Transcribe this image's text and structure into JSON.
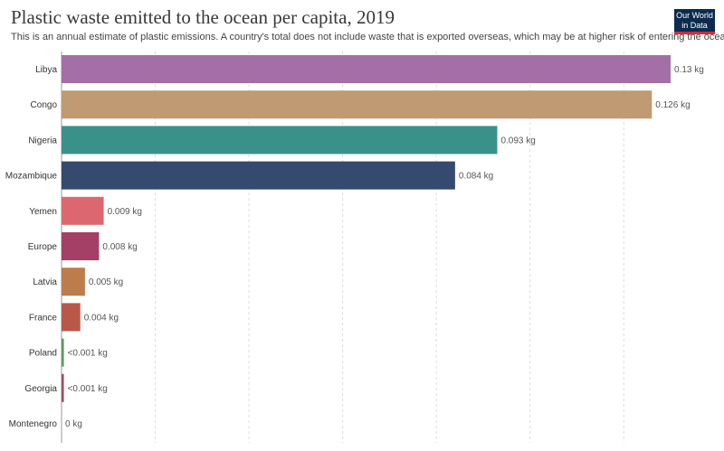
{
  "header": {
    "title": "Plastic waste emitted to the ocean per capita, 2019",
    "subtitle": "This is an annual estimate of plastic emissions. A country's total does not include waste that is exported overseas, which may be at higher risk of entering the ocean.",
    "logo_line1": "Our World",
    "logo_line2": "in Data"
  },
  "colors": {
    "logo_bg": "#0c2b4f",
    "logo_accent": "#d42b3a",
    "grid": "#dddddd"
  },
  "chart_data": {
    "type": "bar",
    "orientation": "horizontal",
    "title": "Plastic waste emitted to the ocean per capita, 2019",
    "unit": "kg",
    "xlim": [
      0,
      0.13
    ],
    "grid": true,
    "categories": [
      "Libya",
      "Congo",
      "Nigeria",
      "Mozambique",
      "Yemen",
      "Europe",
      "Latvia",
      "France",
      "Poland",
      "Georgia",
      "Montenegro"
    ],
    "values": [
      0.13,
      0.126,
      0.093,
      0.084,
      0.009,
      0.008,
      0.005,
      0.004,
      0.0005,
      0.0005,
      0
    ],
    "value_labels": [
      "0.13 kg",
      "0.126 kg",
      "0.093 kg",
      "0.084 kg",
      "0.009 kg",
      "0.008 kg",
      "0.005 kg",
      "0.004 kg",
      "<0.001 kg",
      "<0.001 kg",
      "0 kg"
    ],
    "bar_colors": [
      "#a46ea6",
      "#c09a72",
      "#3a918a",
      "#344a6e",
      "#dd6770",
      "#a43f66",
      "#bd7c4c",
      "#b9584a",
      "#5e9a62",
      "#9e5065",
      "#888888"
    ]
  }
}
